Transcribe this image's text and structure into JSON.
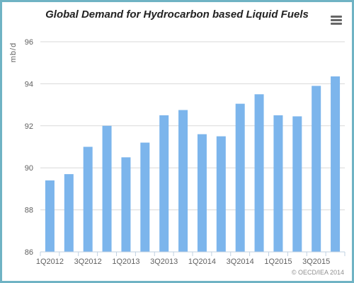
{
  "chart_data": {
    "type": "bar",
    "title": "Global Demand for Hydrocarbon based Liquid Fuels",
    "ylabel": "mb/d",
    "xlabel": "",
    "ylim": [
      86,
      96
    ],
    "yticks": [
      86,
      88,
      90,
      92,
      94,
      96
    ],
    "grid": true,
    "legend": "none",
    "bar_color": "#7cb5ec",
    "categories": [
      "1Q2012",
      "2Q2012",
      "3Q2012",
      "4Q2012",
      "1Q2013",
      "2Q2013",
      "3Q2013",
      "4Q2013",
      "1Q2014",
      "2Q2014",
      "3Q2014",
      "4Q2014",
      "1Q2015",
      "2Q2015",
      "3Q2015",
      "4Q2015"
    ],
    "x_tick_labels": [
      "1Q2012",
      "",
      "3Q2012",
      "",
      "1Q2013",
      "",
      "3Q2013",
      "",
      "1Q2014",
      "",
      "3Q2014",
      "",
      "1Q2015",
      "",
      "3Q2015",
      ""
    ],
    "values": [
      89.4,
      89.7,
      91.0,
      92.0,
      90.5,
      91.2,
      92.5,
      92.75,
      91.6,
      91.5,
      93.05,
      93.5,
      92.5,
      92.45,
      93.9,
      94.35
    ]
  },
  "credits": "© OECD/IEA 2014",
  "menu_icon": "hamburger-menu-icon"
}
